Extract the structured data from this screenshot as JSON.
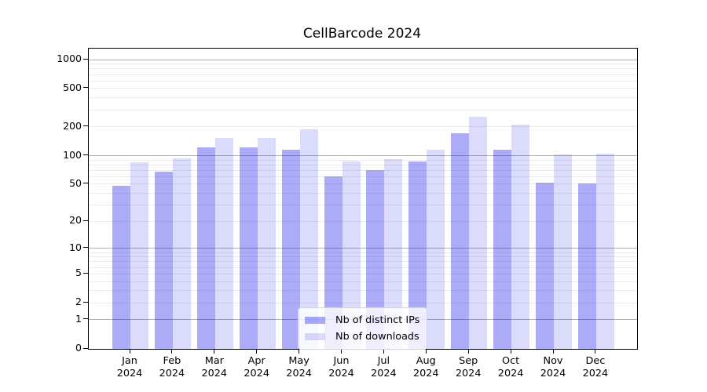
{
  "chart_data": {
    "type": "bar",
    "title": "CellBarcode 2024",
    "categories": [
      "Jan",
      "Feb",
      "Mar",
      "Apr",
      "May",
      "Jun",
      "Jul",
      "Aug",
      "Sep",
      "Oct",
      "Nov",
      "Dec"
    ],
    "category_year": "2024",
    "series": [
      {
        "name": "Nb of distinct IPs",
        "color": "rgba(15,15,235,0.35)",
        "values": [
          48,
          68,
          122,
          122,
          116,
          60,
          70,
          87,
          170,
          115,
          52,
          51
        ]
      },
      {
        "name": "Nb of downloads",
        "color": "rgba(15,15,235,0.15)",
        "values": [
          85,
          93,
          154,
          152,
          187,
          87,
          92,
          116,
          255,
          210,
          102,
          105
        ]
      }
    ],
    "yscale": "log1p",
    "ylim": [
      0,
      1300
    ],
    "yticks": [
      0,
      1,
      2,
      5,
      10,
      20,
      50,
      100,
      200,
      500,
      1000
    ],
    "grid": {
      "on": true,
      "major_values": [
        1,
        10,
        100,
        1000
      ],
      "major_color": "#b2b2b2",
      "minor_color": "#ebebeb"
    },
    "legend_position": "lower-center-inside",
    "axis_color": "#000000",
    "background_color": "#ffffff"
  }
}
